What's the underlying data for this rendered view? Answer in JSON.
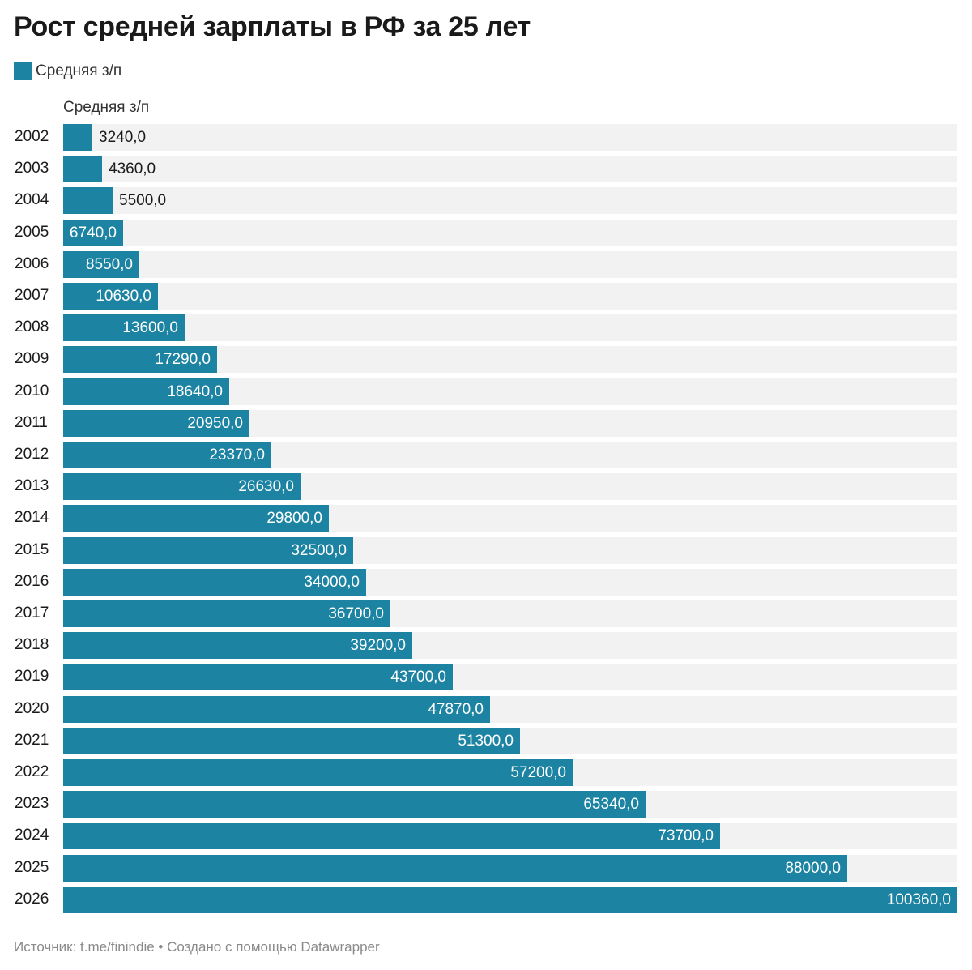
{
  "title": "Рост средней зарплаты в РФ за 25 лет",
  "legend": {
    "label": "Средняя з/п"
  },
  "column_header": "Средняя з/п",
  "footer": "Источник: t.me/finindie • Создано с помощью Datawrapper",
  "colors": {
    "bar": "#1c83a2",
    "track": "#f2f2f2"
  },
  "chart_data": {
    "type": "bar",
    "orientation": "horizontal",
    "title": "Рост средней зарплаты в РФ за 25 лет",
    "xlabel": "",
    "ylabel": "",
    "grid": false,
    "legend_position": "top-left",
    "categories": [
      "2002",
      "2003",
      "2004",
      "2005",
      "2006",
      "2007",
      "2008",
      "2009",
      "2010",
      "2011",
      "2012",
      "2013",
      "2014",
      "2015",
      "2016",
      "2017",
      "2018",
      "2019",
      "2020",
      "2021",
      "2022",
      "2023",
      "2024",
      "2025",
      "2026"
    ],
    "series": [
      {
        "name": "Средняя з/п",
        "values": [
          3240,
          4360,
          5500,
          6740,
          8550,
          10630,
          13600,
          17290,
          18640,
          20950,
          23370,
          26630,
          29800,
          32500,
          34000,
          36700,
          39200,
          43700,
          47870,
          51300,
          57200,
          65340,
          73700,
          88000,
          100360
        ],
        "labels": [
          "3240,0",
          "4360,0",
          "5500,0",
          "6740,0",
          "8550,0",
          "10630,0",
          "13600,0",
          "17290,0",
          "18640,0",
          "20950,0",
          "23370,0",
          "26630,0",
          "29800,0",
          "32500,0",
          "34000,0",
          "36700,0",
          "39200,0",
          "43700,0",
          "47870,0",
          "51300,0",
          "57200,0",
          "65340,0",
          "73700,0",
          "88000,0",
          "100360,0"
        ]
      }
    ],
    "xlim": [
      0,
      100360
    ]
  }
}
